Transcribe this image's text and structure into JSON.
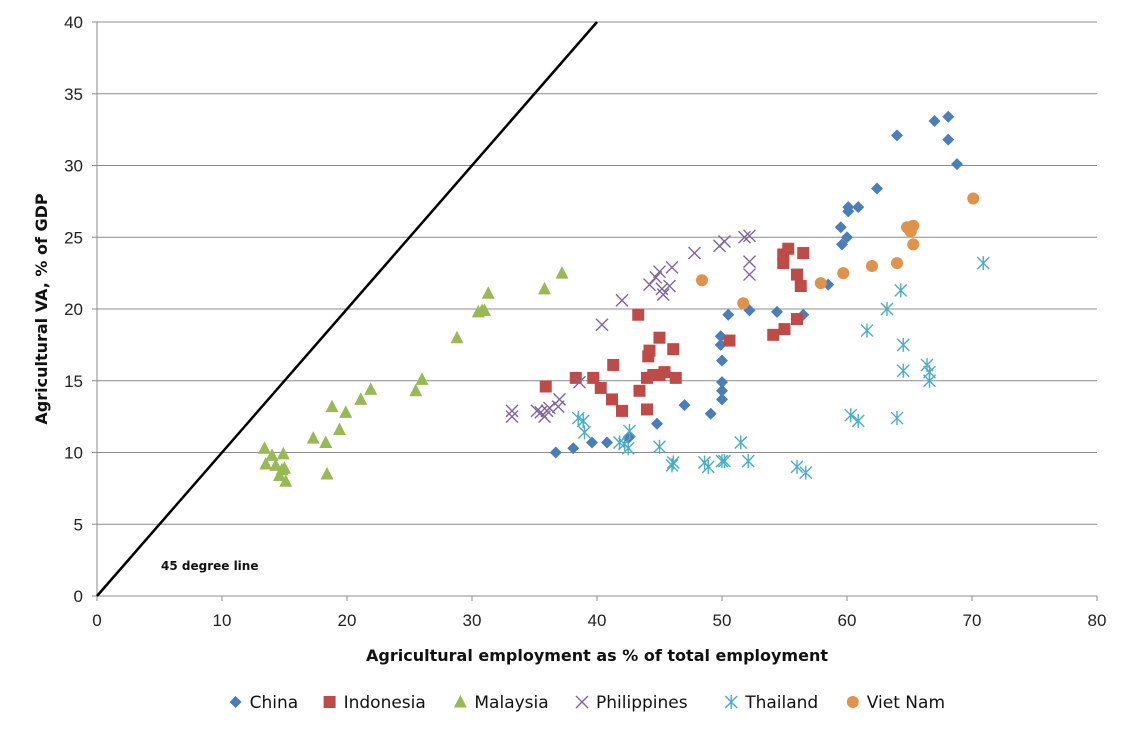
{
  "chart_data": {
    "type": "scatter",
    "xlabel": "Agricultural employment as % of total employment",
    "ylabel": "Agricultural VA, % of GDP",
    "xlim": [
      0,
      80
    ],
    "ylim": [
      0,
      40
    ],
    "xticks": [
      0,
      10,
      20,
      30,
      40,
      50,
      60,
      70,
      80
    ],
    "yticks": [
      0,
      5,
      10,
      15,
      20,
      25,
      30,
      35,
      40
    ],
    "grid": "horizontal",
    "legend_position": "bottom",
    "reference_line": {
      "label": "45 degree line",
      "from": [
        0,
        0
      ],
      "to": [
        40,
        40
      ],
      "color": "#000000"
    },
    "series": [
      {
        "name": "China",
        "marker": "diamond",
        "color": "#4A7EBB",
        "points": [
          [
            36.7,
            10.0
          ],
          [
            38.1,
            10.3
          ],
          [
            39.6,
            10.7
          ],
          [
            40.8,
            10.7
          ],
          [
            42.5,
            11.0
          ],
          [
            42.6,
            11.1
          ],
          [
            44.8,
            12.0
          ],
          [
            47.0,
            13.3
          ],
          [
            49.1,
            12.7
          ],
          [
            50.0,
            13.7
          ],
          [
            50.0,
            14.3
          ],
          [
            50.0,
            14.9
          ],
          [
            50.0,
            16.4
          ],
          [
            49.9,
            17.5
          ],
          [
            49.9,
            18.1
          ],
          [
            50.5,
            19.6
          ],
          [
            52.2,
            19.9
          ],
          [
            54.4,
            19.8
          ],
          [
            56.5,
            19.6
          ],
          [
            58.5,
            21.7
          ],
          [
            59.6,
            24.5
          ],
          [
            59.5,
            25.7
          ],
          [
            60.0,
            25.0
          ],
          [
            60.1,
            26.8
          ],
          [
            60.1,
            27.1
          ],
          [
            60.9,
            27.1
          ],
          [
            62.4,
            28.4
          ],
          [
            64.0,
            32.1
          ],
          [
            67.0,
            33.1
          ],
          [
            68.1,
            33.4
          ],
          [
            68.1,
            31.8
          ],
          [
            68.8,
            30.1
          ]
        ]
      },
      {
        "name": "Indonesia",
        "marker": "square",
        "color": "#BE4B48",
        "points": [
          [
            35.9,
            14.6
          ],
          [
            38.3,
            15.2
          ],
          [
            39.7,
            15.2
          ],
          [
            40.3,
            14.5
          ],
          [
            41.2,
            13.7
          ],
          [
            41.3,
            16.1
          ],
          [
            42.0,
            12.9
          ],
          [
            43.3,
            19.6
          ],
          [
            43.4,
            14.3
          ],
          [
            44.0,
            13.0
          ],
          [
            44.0,
            15.2
          ],
          [
            44.1,
            16.7
          ],
          [
            44.2,
            17.1
          ],
          [
            44.5,
            15.4
          ],
          [
            45.0,
            15.4
          ],
          [
            45.0,
            18.0
          ],
          [
            45.4,
            15.6
          ],
          [
            46.1,
            17.2
          ],
          [
            46.3,
            15.2
          ],
          [
            50.6,
            17.8
          ],
          [
            54.1,
            18.2
          ],
          [
            55.0,
            18.6
          ],
          [
            54.9,
            23.2
          ],
          [
            54.9,
            23.8
          ],
          [
            55.3,
            24.2
          ],
          [
            56.0,
            19.3
          ],
          [
            56.0,
            22.4
          ],
          [
            56.3,
            21.6
          ],
          [
            56.5,
            23.9
          ]
        ]
      },
      {
        "name": "Malaysia",
        "marker": "triangle",
        "color": "#98B954",
        "points": [
          [
            13.4,
            10.3
          ],
          [
            13.5,
            9.2
          ],
          [
            14.0,
            9.8
          ],
          [
            14.3,
            9.1
          ],
          [
            14.6,
            8.4
          ],
          [
            14.8,
            8.8
          ],
          [
            14.9,
            9.9
          ],
          [
            15.0,
            8.9
          ],
          [
            15.1,
            8.0
          ],
          [
            17.3,
            11.0
          ],
          [
            18.3,
            10.7
          ],
          [
            18.4,
            8.5
          ],
          [
            18.8,
            13.2
          ],
          [
            19.4,
            11.6
          ],
          [
            19.9,
            12.8
          ],
          [
            21.1,
            13.7
          ],
          [
            21.9,
            14.4
          ],
          [
            25.5,
            14.3
          ],
          [
            26.0,
            15.1
          ],
          [
            28.8,
            18.0
          ],
          [
            30.5,
            19.8
          ],
          [
            30.8,
            19.9
          ],
          [
            31.0,
            19.9
          ],
          [
            31.3,
            21.1
          ],
          [
            35.8,
            21.4
          ],
          [
            37.2,
            22.5
          ]
        ]
      },
      {
        "name": "Philippines",
        "marker": "x",
        "color": "#8064A2",
        "points": [
          [
            33.2,
            12.5
          ],
          [
            33.2,
            12.9
          ],
          [
            35.2,
            12.9
          ],
          [
            35.5,
            12.8
          ],
          [
            35.8,
            12.5
          ],
          [
            36.0,
            12.9
          ],
          [
            36.2,
            13.1
          ],
          [
            36.9,
            13.2
          ],
          [
            37.0,
            13.7
          ],
          [
            38.6,
            14.9
          ],
          [
            40.4,
            18.9
          ],
          [
            42.0,
            20.6
          ],
          [
            44.2,
            21.7
          ],
          [
            44.7,
            22.2
          ],
          [
            45.0,
            22.6
          ],
          [
            45.2,
            21.4
          ],
          [
            45.3,
            21.0
          ],
          [
            45.8,
            21.6
          ],
          [
            46.0,
            22.9
          ],
          [
            47.8,
            23.9
          ],
          [
            49.8,
            24.4
          ],
          [
            50.2,
            24.7
          ],
          [
            51.8,
            25.0
          ],
          [
            52.2,
            25.1
          ],
          [
            52.2,
            22.4
          ],
          [
            52.2,
            23.3
          ]
        ]
      },
      {
        "name": "Thailand",
        "marker": "asterisk",
        "color": "#4BACC6",
        "points": [
          [
            38.5,
            12.4
          ],
          [
            38.9,
            12.2
          ],
          [
            39.0,
            11.4
          ],
          [
            41.8,
            10.7
          ],
          [
            42.2,
            10.6
          ],
          [
            42.5,
            10.3
          ],
          [
            42.6,
            11.5
          ],
          [
            45.0,
            10.4
          ],
          [
            46.0,
            9.1
          ],
          [
            46.1,
            9.3
          ],
          [
            48.6,
            9.3
          ],
          [
            48.9,
            9.0
          ],
          [
            50.0,
            9.4
          ],
          [
            50.2,
            9.4
          ],
          [
            51.5,
            10.7
          ],
          [
            52.1,
            9.4
          ],
          [
            56.0,
            9.0
          ],
          [
            56.7,
            8.6
          ],
          [
            60.3,
            12.6
          ],
          [
            60.9,
            12.2
          ],
          [
            61.6,
            18.5
          ],
          [
            63.2,
            20.0
          ],
          [
            64.0,
            12.4
          ],
          [
            64.3,
            21.3
          ],
          [
            64.5,
            17.5
          ],
          [
            64.5,
            15.7
          ],
          [
            66.4,
            16.1
          ],
          [
            66.6,
            15.6
          ],
          [
            66.6,
            15.0
          ],
          [
            70.9,
            23.2
          ]
        ]
      },
      {
        "name": "Viet Nam",
        "marker": "circle",
        "color": "#E0914A",
        "points": [
          [
            48.4,
            22.0
          ],
          [
            51.7,
            20.4
          ],
          [
            57.9,
            21.8
          ],
          [
            59.7,
            22.5
          ],
          [
            62.0,
            23.0
          ],
          [
            64.0,
            23.2
          ],
          [
            64.8,
            25.7
          ],
          [
            65.1,
            25.4
          ],
          [
            65.3,
            24.5
          ],
          [
            65.3,
            25.8
          ],
          [
            70.1,
            27.7
          ]
        ]
      }
    ]
  }
}
